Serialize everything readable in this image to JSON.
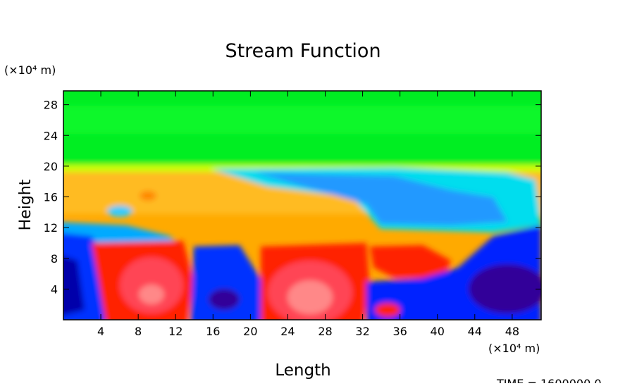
{
  "chart_data": {
    "type": "contour",
    "title": "Stream Function",
    "x_label": "Length",
    "y_label": "Height",
    "x_unit": "(×10⁴ m)",
    "y_unit": "(×10⁴ m)",
    "footer": "TIME = 1600000.0",
    "xlim": [
      0,
      51.1
    ],
    "ylim": [
      0,
      29.8
    ],
    "xticks": [
      4,
      8,
      12,
      16,
      20,
      24,
      28,
      32,
      36,
      40,
      44,
      48
    ],
    "yticks": [
      4,
      8,
      12,
      16,
      20,
      24,
      28
    ]
  }
}
